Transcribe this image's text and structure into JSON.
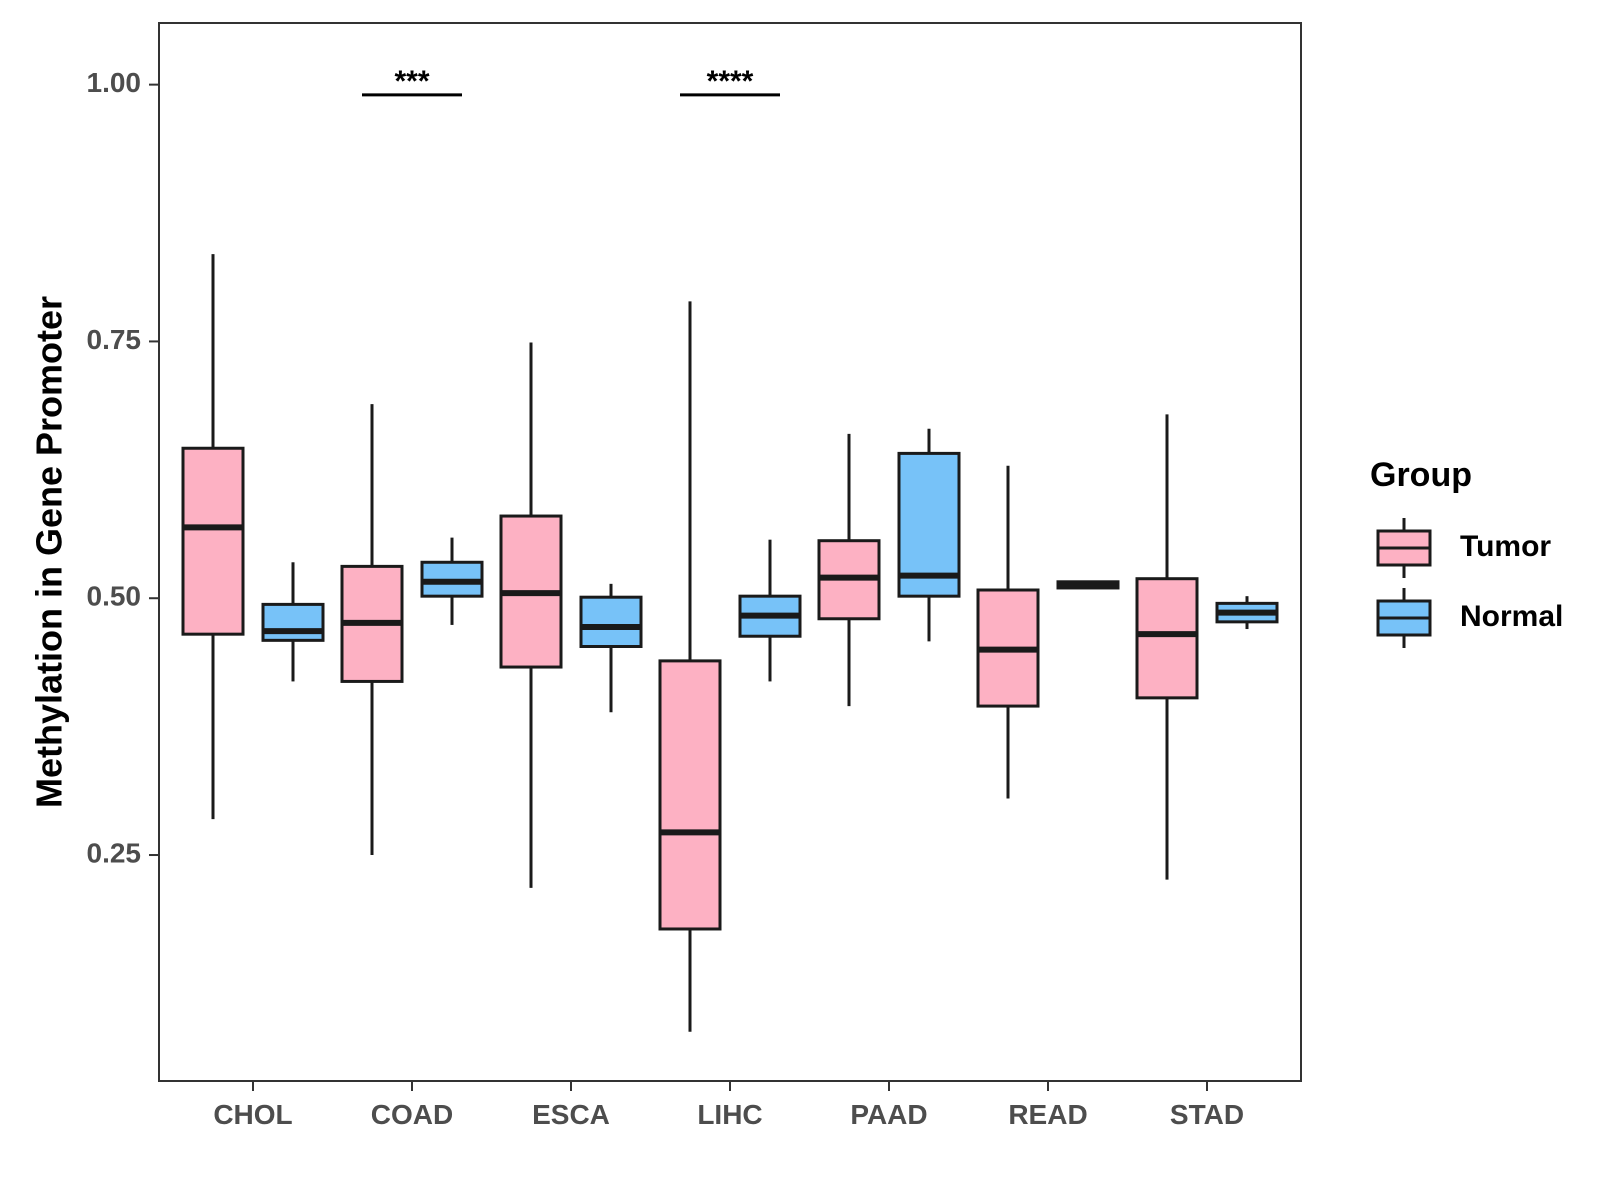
{
  "chart_data": {
    "type": "boxplot",
    "title": "",
    "xlabel": "",
    "ylabel": "Methylation in Gene Promoter",
    "ylim": [
      0.03,
      1.06
    ],
    "yticks": [
      {
        "value": 0.25,
        "label": "0.25"
      },
      {
        "value": 0.5,
        "label": "0.50"
      },
      {
        "value": 0.75,
        "label": "0.75"
      },
      {
        "value": 1.0,
        "label": "1.00"
      }
    ],
    "categories": [
      "CHOL",
      "COAD",
      "ESCA",
      "LIHC",
      "PAAD",
      "READ",
      "STAD"
    ],
    "legend": {
      "title": "Group",
      "position": "right",
      "entries": [
        {
          "name": "Tumor",
          "color": "#FDB1C3"
        },
        {
          "name": "Normal",
          "color": "#77C2F8"
        }
      ]
    },
    "series": [
      {
        "name": "Tumor",
        "color": "#FDB1C3",
        "boxes": [
          {
            "min": 0.285,
            "q1": 0.465,
            "median": 0.569,
            "q3": 0.646,
            "max": 0.835
          },
          {
            "min": 0.25,
            "q1": 0.419,
            "median": 0.476,
            "q3": 0.531,
            "max": 0.689
          },
          {
            "min": 0.218,
            "q1": 0.433,
            "median": 0.505,
            "q3": 0.58,
            "max": 0.749
          },
          {
            "min": 0.078,
            "q1": 0.178,
            "median": 0.272,
            "q3": 0.439,
            "max": 0.789
          },
          {
            "min": 0.395,
            "q1": 0.48,
            "median": 0.52,
            "q3": 0.556,
            "max": 0.66
          },
          {
            "min": 0.305,
            "q1": 0.395,
            "median": 0.45,
            "q3": 0.508,
            "max": 0.629
          },
          {
            "min": 0.226,
            "q1": 0.403,
            "median": 0.465,
            "q3": 0.519,
            "max": 0.679
          }
        ]
      },
      {
        "name": "Normal",
        "color": "#77C2F8",
        "boxes": [
          {
            "min": 0.419,
            "q1": 0.459,
            "median": 0.468,
            "q3": 0.494,
            "max": 0.535
          },
          {
            "min": 0.474,
            "q1": 0.502,
            "median": 0.516,
            "q3": 0.535,
            "max": 0.559
          },
          {
            "min": 0.389,
            "q1": 0.453,
            "median": 0.472,
            "q3": 0.501,
            "max": 0.514
          },
          {
            "min": 0.419,
            "q1": 0.463,
            "median": 0.483,
            "q3": 0.502,
            "max": 0.557
          },
          {
            "min": 0.458,
            "q1": 0.502,
            "median": 0.522,
            "q3": 0.641,
            "max": 0.665
          },
          {
            "min": 0.51,
            "q1": 0.51,
            "median": 0.513,
            "q3": 0.516,
            "max": 0.516
          },
          {
            "min": 0.47,
            "q1": 0.477,
            "median": 0.486,
            "q3": 0.495,
            "max": 0.502
          }
        ]
      }
    ],
    "annotations": [
      {
        "category": "COAD",
        "label": "***",
        "y": 0.99
      },
      {
        "category": "LIHC",
        "label": "****",
        "y": 0.99
      }
    ]
  }
}
